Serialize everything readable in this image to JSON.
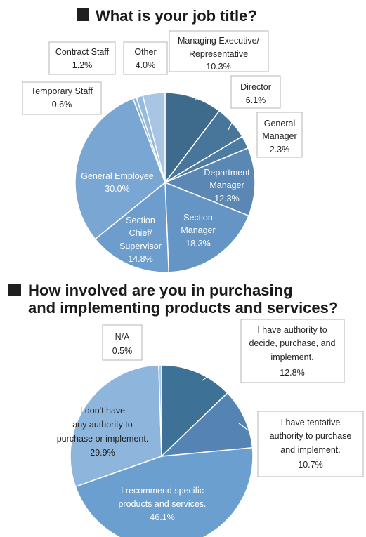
{
  "colors": {
    "title_square": "#1f1f1f",
    "slice_stroke": "#ffffff"
  },
  "chart_data": [
    {
      "type": "pie",
      "title": "What is your job title?",
      "start_angle_deg": 0,
      "direction": "clockwise",
      "slices": [
        {
          "label_lines": [
            "Managing Executive/",
            "Representative"
          ],
          "value": 10.3,
          "value_text": "10.3%",
          "color": "#3e6a8c",
          "label_style": "callout"
        },
        {
          "label_lines": [
            "Director"
          ],
          "value": 6.1,
          "value_text": "6.1%",
          "color": "#48769a",
          "label_style": "callout"
        },
        {
          "label_lines": [
            "General",
            "Manager"
          ],
          "value": 2.3,
          "value_text": "2.3%",
          "color": "#4d7ca3",
          "label_style": "callout"
        },
        {
          "label_lines": [
            "Department",
            "Manager"
          ],
          "value": 12.3,
          "value_text": "12.3%",
          "color": "#5b87b5",
          "label_style": "inside"
        },
        {
          "label_lines": [
            "Section",
            "Manager"
          ],
          "value": 18.3,
          "value_text": "18.3%",
          "color": "#6595c4",
          "label_style": "inside"
        },
        {
          "label_lines": [
            "Section",
            "Chief/",
            "Supervisor"
          ],
          "value": 14.8,
          "value_text": "14.8%",
          "color": "#6d9dcc",
          "label_style": "inside"
        },
        {
          "label_lines": [
            "General Employee"
          ],
          "value": 30.0,
          "value_text": "30.0%",
          "color": "#79a6d3",
          "label_style": "inside"
        },
        {
          "label_lines": [
            "Temporary Staff"
          ],
          "value": 0.6,
          "value_text": "0.6%",
          "color": "#8bb2da",
          "label_style": "callout"
        },
        {
          "label_lines": [
            "Contract Staff"
          ],
          "value": 1.2,
          "value_text": "1.2%",
          "color": "#97badf",
          "label_style": "callout"
        },
        {
          "label_lines": [
            "Other"
          ],
          "value": 4.0,
          "value_text": "4.0%",
          "color": "#a8c5e3",
          "label_style": "callout"
        }
      ]
    },
    {
      "type": "pie",
      "title": "How involved are you in purchasing and implementing products and services?",
      "title_lines": [
        "How involved are you in purchasing",
        "and implementing products and services?"
      ],
      "start_angle_deg": 0,
      "direction": "clockwise",
      "slices": [
        {
          "label_lines": [
            "I have authority to",
            "decide, purchase, and",
            "implement."
          ],
          "value": 12.8,
          "value_text": "12.8%",
          "color": "#3e7196",
          "label_style": "callout"
        },
        {
          "label_lines": [
            "I have tentative",
            "authority to purchase",
            "and implement."
          ],
          "value": 10.7,
          "value_text": "10.7%",
          "color": "#5483b4",
          "label_style": "callout"
        },
        {
          "label_lines": [
            "I recommend specific",
            "products and services."
          ],
          "value": 46.1,
          "value_text": "46.1%",
          "color": "#6b9fd0",
          "label_style": "inside"
        },
        {
          "label_lines": [
            "I don't have",
            "any authority to",
            "purchase or implement."
          ],
          "value": 29.9,
          "value_text": "29.9%",
          "color": "#8eb5dc",
          "label_style": "inside_dark"
        },
        {
          "label_lines": [
            "N/A"
          ],
          "value": 0.5,
          "value_text": "0.5%",
          "color": "#a9c6e4",
          "label_style": "callout"
        }
      ]
    }
  ]
}
